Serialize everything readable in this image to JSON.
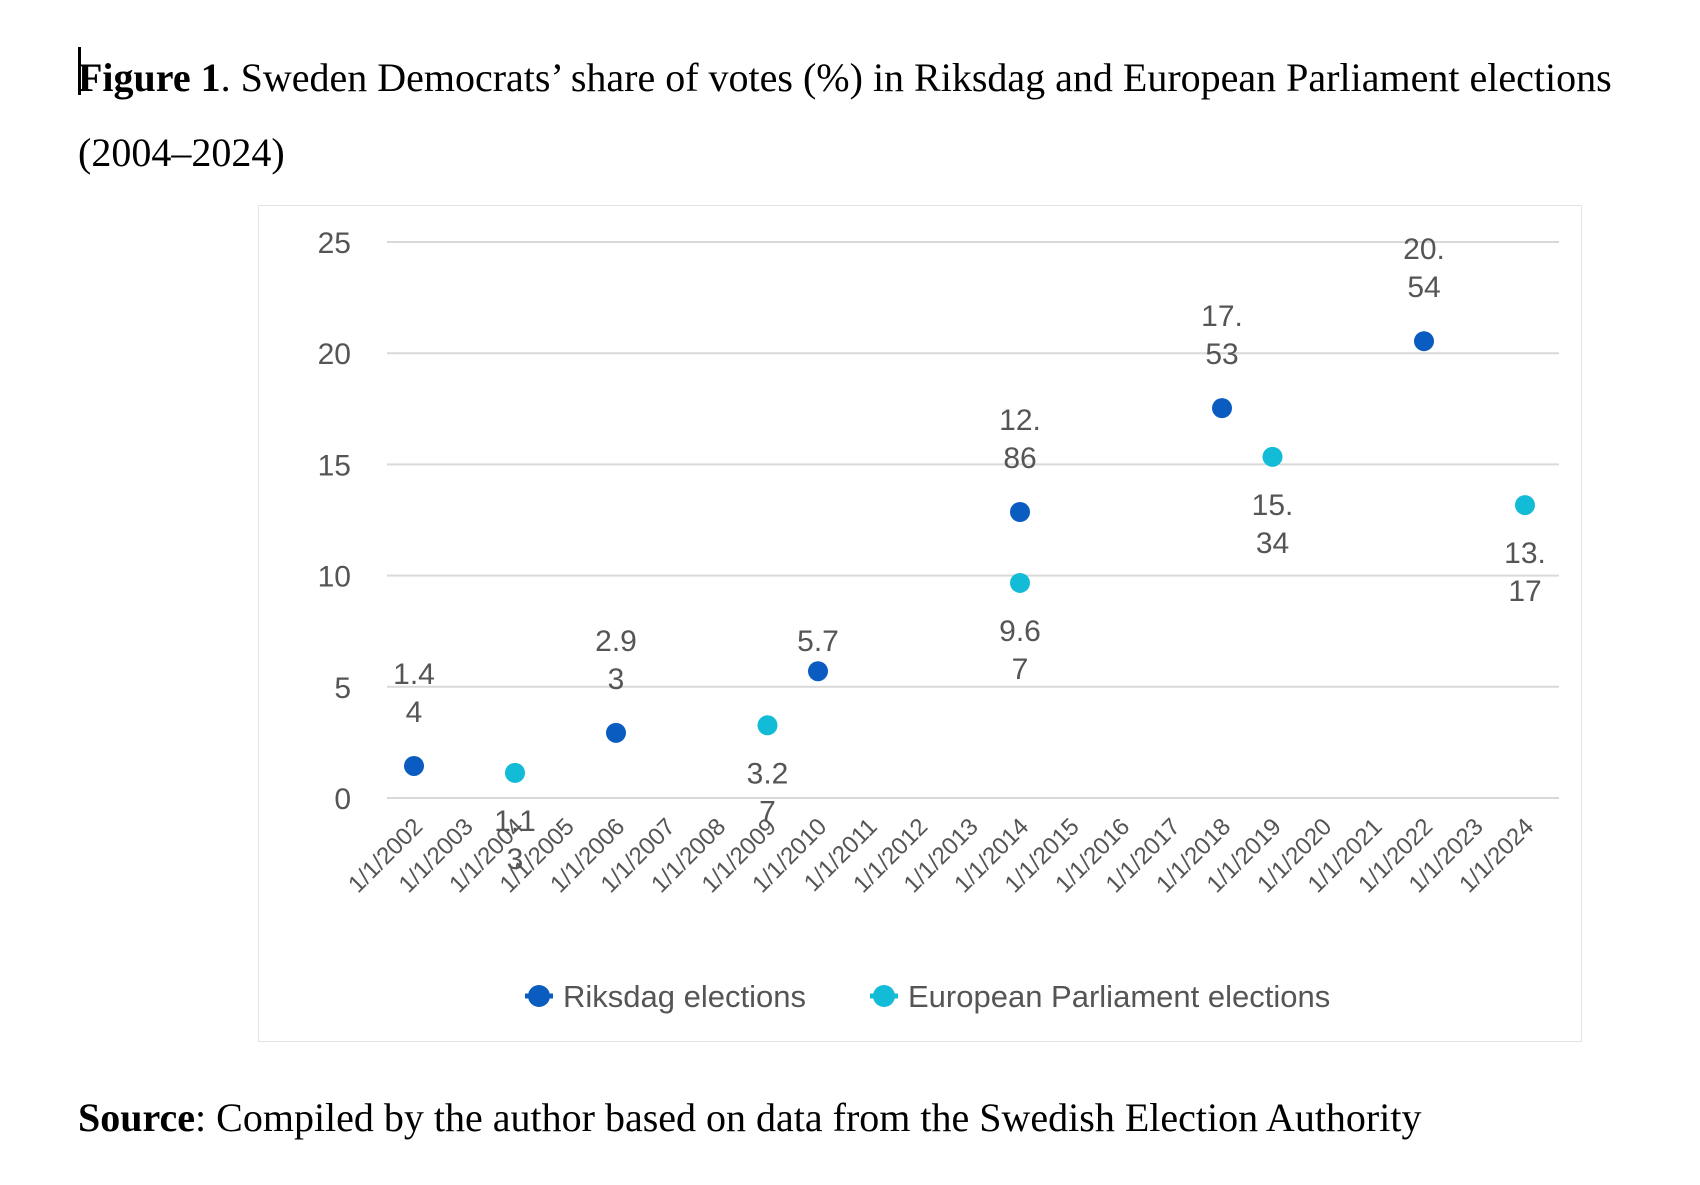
{
  "caption": {
    "label": "Figure 1",
    "text": ". Sweden Democrats’ share of votes (%) in Riksdag and European Parliament elections (2004–2024)"
  },
  "source": {
    "label": "Source",
    "text": ": Compiled by the author based on data from the Swedish Election Authority"
  },
  "chart_data": {
    "type": "scatter",
    "title": "",
    "xlabel": "",
    "ylabel": "",
    "ylim": [
      0,
      25
    ],
    "yticks": [
      "0",
      "5",
      "10",
      "15",
      "20",
      "25"
    ],
    "grid": true,
    "legend_position": "bottom",
    "categories": [
      "1/1/2002",
      "1/1/2003",
      "1/1/2004",
      "1/1/2005",
      "1/1/2006",
      "1/1/2007",
      "1/1/2008",
      "1/1/2009",
      "1/1/2010",
      "1/1/2011",
      "1/1/2012",
      "1/1/2013",
      "1/1/2014",
      "1/1/2015",
      "1/1/2016",
      "1/1/2017",
      "1/1/2018",
      "1/1/2019",
      "1/1/2020",
      "1/1/2021",
      "1/1/2022",
      "1/1/2023",
      "1/1/2024"
    ],
    "series": [
      {
        "name": "Riksdag elections",
        "color": "#0b5cc1",
        "points": [
          {
            "x": "1/1/2002",
            "y": 1.44,
            "label_lines": [
              "1.4",
              "4"
            ]
          },
          {
            "x": "1/1/2006",
            "y": 2.93,
            "label_lines": [
              "2.9",
              "3"
            ]
          },
          {
            "x": "1/1/2010",
            "y": 5.7,
            "label_lines": [
              "5.7"
            ]
          },
          {
            "x": "1/1/2014",
            "y": 12.86,
            "label_lines": [
              "12.",
              "86"
            ]
          },
          {
            "x": "1/1/2018",
            "y": 17.53,
            "label_lines": [
              "17.",
              "53"
            ]
          },
          {
            "x": "1/1/2022",
            "y": 20.54,
            "label_lines": [
              "20.",
              "54"
            ]
          }
        ]
      },
      {
        "name": "European Parliament elections",
        "color": "#13bcd6",
        "points": [
          {
            "x": "1/1/2004",
            "y": 1.13,
            "label_lines": [
              "1.1",
              "3"
            ]
          },
          {
            "x": "1/1/2009",
            "y": 3.27,
            "label_lines": [
              "3.2",
              "7"
            ]
          },
          {
            "x": "1/1/2014",
            "y": 9.67,
            "label_lines": [
              "9.6",
              "7"
            ]
          },
          {
            "x": "1/1/2019",
            "y": 15.34,
            "label_lines": [
              "15.",
              "34"
            ]
          },
          {
            "x": "1/1/2024",
            "y": 13.17,
            "label_lines": [
              "13.",
              "17"
            ]
          }
        ]
      }
    ]
  }
}
